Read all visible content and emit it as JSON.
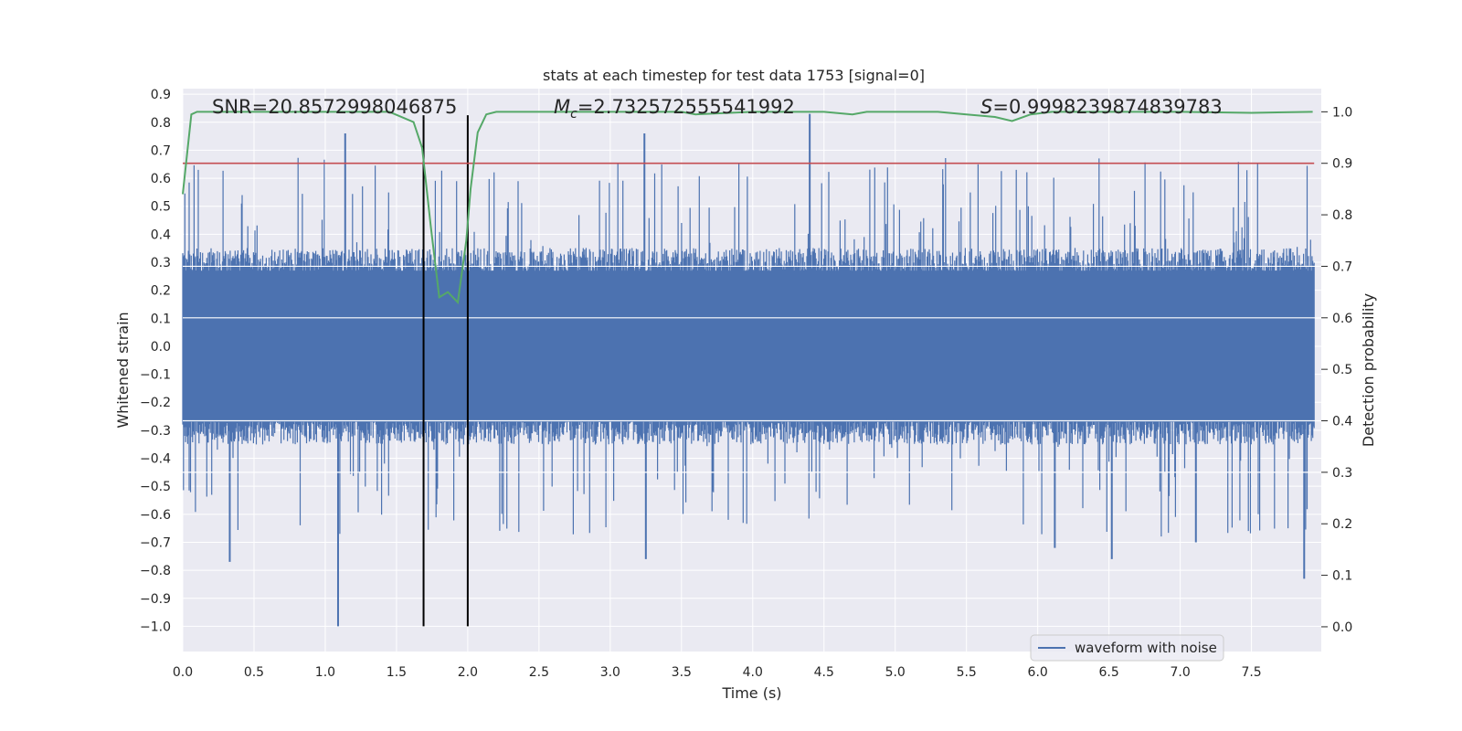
{
  "chart_data": {
    "type": "line",
    "title": "stats at each timestep for test data 1753 [signal=0]",
    "xlabel": "Time (s)",
    "ylabel": "Whitened strain",
    "y2label": "Detection probability",
    "xlim": [
      0.0,
      7.99
    ],
    "ylim": [
      -1.09,
      0.92
    ],
    "y2lim": [
      -0.048,
      1.045
    ],
    "x_ticks": [
      0.0,
      0.5,
      1.0,
      1.5,
      2.0,
      2.5,
      3.0,
      3.5,
      4.0,
      4.5,
      5.0,
      5.5,
      6.0,
      6.5,
      7.0,
      7.5
    ],
    "x_tick_labels": [
      "0.0",
      "0.5",
      "1.0",
      "1.5",
      "2.0",
      "2.5",
      "3.0",
      "3.5",
      "4.0",
      "4.5",
      "5.0",
      "5.5",
      "6.0",
      "6.5",
      "7.0",
      "7.5"
    ],
    "y_ticks": [
      0.9,
      0.8,
      0.7,
      0.6,
      0.5,
      0.4,
      0.3,
      0.2,
      0.1,
      0.0,
      -0.1,
      -0.2,
      -0.3,
      -0.4,
      -0.5,
      -0.6,
      -0.7,
      -0.8,
      -0.9,
      -1.0
    ],
    "y_tick_labels": [
      "0.9",
      "0.8",
      "0.7",
      "0.6",
      "0.5",
      "0.4",
      "0.3",
      "0.2",
      "0.1",
      "0.0",
      "−0.1",
      "−0.2",
      "−0.3",
      "−0.4",
      "−0.5",
      "−0.6",
      "−0.7",
      "−0.8",
      "−0.9",
      "−1.0"
    ],
    "y2_ticks": [
      1.0,
      0.9,
      0.8,
      0.7,
      0.6,
      0.5,
      0.4,
      0.3,
      0.2,
      0.1,
      0.0
    ],
    "y2_tick_labels": [
      "1.0",
      "0.9",
      "0.8",
      "0.7",
      "0.6",
      "0.5",
      "0.4",
      "0.3",
      "0.2",
      "0.1",
      "0.0"
    ],
    "annotations": {
      "snr": "SNR=20.8572998046875",
      "mc_symbol": "M",
      "mc_sub": "c",
      "mc_value": "=2.732572555541992",
      "s_symbol": "S",
      "s_value": "=0.9998239874839783"
    },
    "legend": {
      "label": "waveform with noise",
      "location": "lower-right"
    },
    "waveform": {
      "name": "waveform with noise",
      "color": "#4c72b0",
      "noise_amplitude_typical": 0.27,
      "notable_peaks": [
        {
          "x": 0.33,
          "y": -0.77
        },
        {
          "x": 1.09,
          "y": -1.0
        },
        {
          "x": 1.14,
          "y": 0.76
        },
        {
          "x": 3.24,
          "y": 0.76
        },
        {
          "x": 3.25,
          "y": -0.76
        },
        {
          "x": 4.4,
          "y": 0.83
        },
        {
          "x": 6.12,
          "y": -0.72
        },
        {
          "x": 6.52,
          "y": -0.76
        },
        {
          "x": 7.11,
          "y": -0.7
        },
        {
          "x": 7.87,
          "y": -0.83
        }
      ]
    },
    "detection_probability": {
      "name": "detection probability",
      "color": "#55a868",
      "axis": "right",
      "x": [
        0.0,
        0.06,
        0.1,
        0.3,
        0.6,
        1.0,
        1.3,
        1.45,
        1.62,
        1.68,
        1.74,
        1.8,
        1.86,
        1.93,
        1.99,
        2.02,
        2.07,
        2.13,
        2.2,
        2.5,
        3.0,
        3.5,
        3.6,
        4.0,
        4.5,
        4.7,
        4.8,
        5.3,
        5.5,
        5.7,
        5.82,
        5.95,
        6.1,
        6.5,
        7.0,
        7.5,
        7.93
      ],
      "y": [
        0.84,
        0.995,
        1.0,
        1.0,
        1.0,
        1.0,
        1.0,
        1.0,
        0.98,
        0.93,
        0.78,
        0.64,
        0.65,
        0.63,
        0.75,
        0.85,
        0.96,
        0.995,
        1.0,
        1.0,
        1.0,
        1.0,
        0.995,
        1.0,
        1.0,
        0.995,
        1.0,
        1.0,
        0.995,
        0.99,
        0.982,
        0.995,
        1.0,
        1.0,
        1.0,
        0.998,
        1.0
      ]
    },
    "threshold": {
      "name": "threshold",
      "color": "#c44e52",
      "axis": "right",
      "value": 0.9
    },
    "vertical_markers": {
      "color": "#000000",
      "x": [
        1.69,
        2.0
      ],
      "y_from": -1.0,
      "y_to": 0.825
    },
    "colors": {
      "background": "#eaeaf2",
      "grid": "#ffffff",
      "text": "#262626"
    }
  }
}
